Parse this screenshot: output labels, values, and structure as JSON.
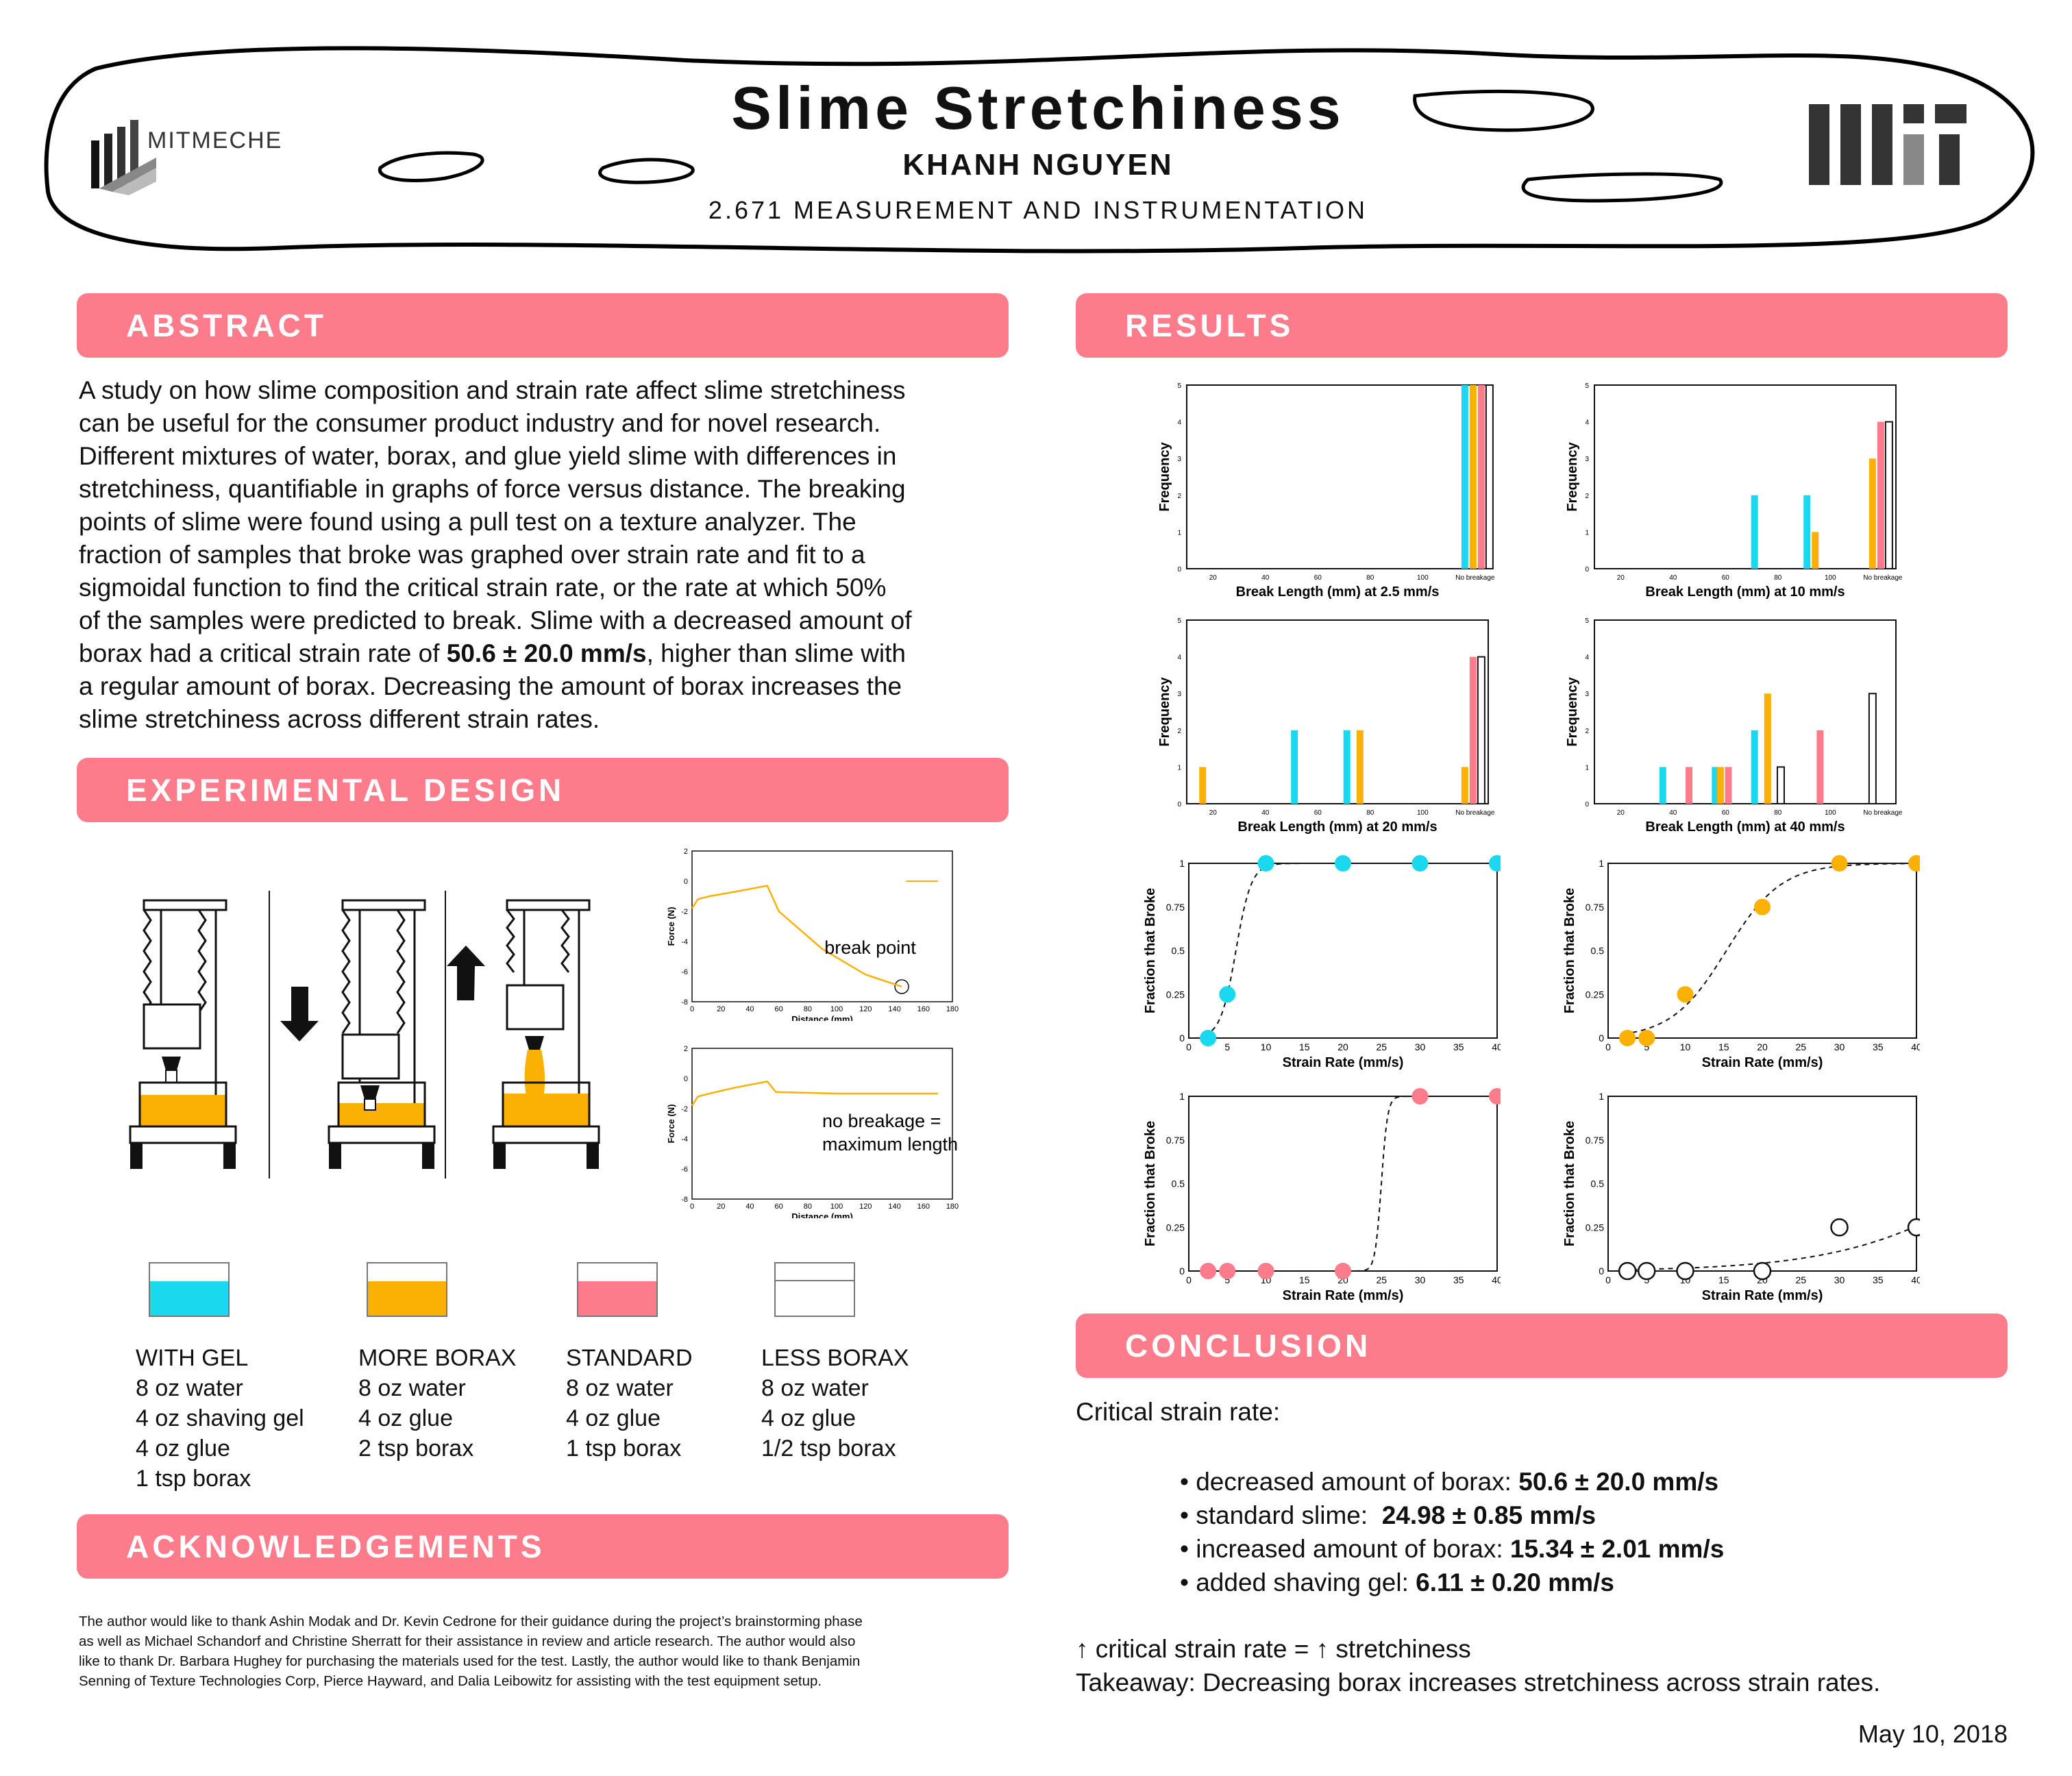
{
  "header": {
    "title": "Slime Stretchiness",
    "author": "KHANH NGUYEN",
    "course": "2.671 MEASUREMENT AND INSTRUMENTATION",
    "logo_left_text": "MITMECHE",
    "logo_right": "MIT"
  },
  "sections": {
    "abstract": "ABSTRACT",
    "experimental": "EXPERIMENTAL DESIGN",
    "acknowledgements": "ACKNOWLEDGEMENTS",
    "results": "RESULTS",
    "conclusion": "CONCLUSION"
  },
  "abstract_lines": [
    "A study on how slime composition and strain rate affect slime stretchiness",
    "can be useful for the consumer product industry and for novel research.",
    "Different mixtures of water, borax, and glue yield slime with differences in",
    "stretchiness, quantifiable in graphs of force versus distance. The breaking",
    "points of slime were found using a pull test on a texture analyzer. The",
    "fraction of samples that broke was graphed over strain rate and fit to a",
    "sigmoidal function to find the critical strain rate, or the rate at which 50%",
    "of the samples were predicted to break. Slime with a decreased amount of"
  ],
  "abstract_l9": {
    "pre": "borax had a critical strain rate of ",
    "bold": "50.6  ± 20.0 mm/s",
    "post": ", higher than slime with"
  },
  "abstract_tail": [
    "a regular amount of borax. Decreasing the amount of borax increases the",
    "slime stretchiness across different strain rates."
  ],
  "colors": {
    "gel": "#1ad8ee",
    "more_borax": "#fbb103",
    "standard": "#fd7c8c",
    "less_borax": "#ffffff",
    "banner": "#fd7c8c"
  },
  "mixtures": [
    {
      "name": "WITH GEL",
      "lines": [
        "8 oz water",
        "4 oz shaving gel",
        "4 oz glue",
        "1 tsp borax"
      ]
    },
    {
      "name": "MORE BORAX",
      "lines": [
        "8 oz water",
        "4 oz glue",
        "2 tsp borax"
      ]
    },
    {
      "name": "STANDARD",
      "lines": [
        "8 oz water",
        "4 oz glue",
        "1 tsp borax"
      ]
    },
    {
      "name": "LESS BORAX",
      "lines": [
        "8 oz water",
        "4 oz glue",
        "1/2 tsp borax"
      ]
    }
  ],
  "force_plots": [
    {
      "ylabel": "Force (N)",
      "xlabel": "Distance (mm)",
      "annotation": [
        "break point"
      ],
      "yticks": [
        "2",
        "0",
        "-2",
        "-4",
        "-6",
        "-8"
      ],
      "xticks": [
        "0",
        "20",
        "40",
        "60",
        "80",
        "100",
        "120",
        "140",
        "160",
        "180"
      ]
    },
    {
      "ylabel": "Force (N)",
      "xlabel": "Distance (mm)",
      "annotation": [
        "no breakage =",
        "maximum length"
      ],
      "yticks": [
        "2",
        "0",
        "-2",
        "-4",
        "-6",
        "-8"
      ],
      "xticks": [
        "0",
        "20",
        "40",
        "60",
        "80",
        "100",
        "120",
        "140",
        "160",
        "180"
      ]
    }
  ],
  "chart_data": [
    {
      "type": "bar",
      "title": "",
      "xlabel": "Break Length (mm) at 2.5 mm/s",
      "ylabel": "Frequency",
      "ylim": [
        0,
        5
      ],
      "xticks": [
        "20",
        "40",
        "60",
        "80",
        "100",
        "No breakage"
      ],
      "series": [
        {
          "color": "#1ad8ee",
          "bars": [
            [
              120,
              5
            ]
          ]
        },
        {
          "color": "#fbb103",
          "bars": [
            [
              120,
              5
            ]
          ]
        },
        {
          "color": "#fd7c8c",
          "bars": [
            [
              120,
              5
            ]
          ]
        },
        {
          "color": "#ffffff",
          "bars": [
            [
              120,
              5
            ]
          ]
        }
      ]
    },
    {
      "type": "bar",
      "title": "",
      "xlabel": "Break Length (mm) at 10 mm/s",
      "ylabel": "Frequency",
      "ylim": [
        0,
        5
      ],
      "xticks": [
        "20",
        "40",
        "60",
        "80",
        "100",
        "No breakage"
      ],
      "series": [
        {
          "color": "#1ad8ee",
          "bars": [
            [
              75,
              2
            ],
            [
              95,
              2
            ]
          ]
        },
        {
          "color": "#fbb103",
          "bars": [
            [
              95,
              1
            ],
            [
              120,
              3
            ]
          ]
        },
        {
          "color": "#fd7c8c",
          "bars": [
            [
              120,
              4
            ]
          ]
        },
        {
          "color": "#ffffff",
          "bars": [
            [
              120,
              4
            ]
          ]
        }
      ]
    },
    {
      "type": "bar",
      "title": "",
      "xlabel": "Break Length (mm) at 20 mm/s",
      "ylabel": "Frequency",
      "ylim": [
        0,
        5
      ],
      "xticks": [
        "20",
        "40",
        "60",
        "80",
        "100",
        "No breakage"
      ],
      "series": [
        {
          "color": "#fbb103",
          "bars": [
            [
              20,
              1
            ],
            [
              80,
              2
            ],
            [
              120,
              1
            ]
          ]
        },
        {
          "color": "#1ad8ee",
          "bars": [
            [
              55,
              2
            ],
            [
              75,
              2
            ]
          ]
        },
        {
          "color": "#fd7c8c",
          "bars": [
            [
              120,
              4
            ]
          ]
        },
        {
          "color": "#ffffff",
          "bars": [
            [
              120,
              4
            ]
          ]
        }
      ]
    },
    {
      "type": "bar",
      "title": "",
      "xlabel": "Break Length (mm) at 40 mm/s",
      "ylabel": "Frequency",
      "ylim": [
        0,
        5
      ],
      "xticks": [
        "20",
        "40",
        "60",
        "80",
        "100",
        "No breakage"
      ],
      "series": [
        {
          "color": "#1ad8ee",
          "bars": [
            [
              40,
              1
            ],
            [
              60,
              1
            ],
            [
              75,
              2
            ]
          ]
        },
        {
          "color": "#fd7c8c",
          "bars": [
            [
              50,
              1
            ],
            [
              65,
              1
            ],
            [
              100,
              2
            ]
          ]
        },
        {
          "color": "#fbb103",
          "bars": [
            [
              62,
              1
            ],
            [
              80,
              3
            ]
          ]
        },
        {
          "color": "#ffffff",
          "bars": [
            [
              85,
              1
            ],
            [
              120,
              3
            ]
          ]
        }
      ]
    },
    {
      "type": "scatter",
      "title": "",
      "xlabel": "Strain Rate (mm/s)",
      "ylabel": "Fraction that Broke",
      "xlim": [
        0,
        40
      ],
      "ylim": [
        0,
        1
      ],
      "xticks": [
        "0",
        "5",
        "10",
        "15",
        "20",
        "25",
        "30",
        "35",
        "40"
      ],
      "yticks": [
        "0",
        "0.25",
        "0.5",
        "0.75",
        "1"
      ],
      "color": "#1ad8ee",
      "critical": 6.11,
      "steep": 1.0,
      "points": [
        [
          2.5,
          0
        ],
        [
          5,
          0.25
        ],
        [
          10,
          1
        ],
        [
          20,
          1
        ],
        [
          30,
          1
        ],
        [
          40,
          1
        ]
      ]
    },
    {
      "type": "scatter",
      "title": "",
      "xlabel": "Strain Rate (mm/s)",
      "ylabel": "Fraction that Broke",
      "xlim": [
        0,
        40
      ],
      "ylim": [
        0,
        1
      ],
      "xticks": [
        "0",
        "5",
        "10",
        "15",
        "20",
        "25",
        "30",
        "35",
        "40"
      ],
      "yticks": [
        "0",
        "0.25",
        "0.5",
        "0.75",
        "1"
      ],
      "color": "#fbb103",
      "critical": 15.34,
      "steep": 0.28,
      "points": [
        [
          2.5,
          0
        ],
        [
          5,
          0
        ],
        [
          10,
          0.25
        ],
        [
          20,
          0.75
        ],
        [
          30,
          1
        ],
        [
          40,
          1
        ]
      ]
    },
    {
      "type": "scatter",
      "title": "",
      "xlabel": "Strain Rate (mm/s)",
      "ylabel": "Fraction that Broke",
      "xlim": [
        0,
        40
      ],
      "ylim": [
        0,
        1
      ],
      "xticks": [
        "0",
        "5",
        "10",
        "15",
        "20",
        "25",
        "30",
        "35",
        "40"
      ],
      "yticks": [
        "0",
        "0.25",
        "0.5",
        "0.75",
        "1"
      ],
      "color": "#fd7c8c",
      "critical": 24.98,
      "steep": 2.5,
      "points": [
        [
          2.5,
          0
        ],
        [
          5,
          0
        ],
        [
          10,
          0
        ],
        [
          20,
          0
        ],
        [
          30,
          1
        ],
        [
          40,
          1
        ]
      ]
    },
    {
      "type": "scatter",
      "title": "",
      "xlabel": "Strain Rate (mm/s)",
      "ylabel": "Fraction that Broke",
      "xlim": [
        0,
        40
      ],
      "ylim": [
        0,
        1
      ],
      "xticks": [
        "0",
        "5",
        "10",
        "15",
        "20",
        "25",
        "30",
        "35",
        "40"
      ],
      "yticks": [
        "0",
        "0.25",
        "0.5",
        "0.75",
        "1"
      ],
      "color": "#ffffff",
      "critical": 50.6,
      "steep": 0.1,
      "points": [
        [
          2.5,
          0
        ],
        [
          5,
          0
        ],
        [
          10,
          0
        ],
        [
          20,
          0
        ],
        [
          30,
          0.25
        ],
        [
          40,
          0.25
        ]
      ]
    }
  ],
  "acknowledgements_lines": [
    "The author would like to thank Ashin Modak and Dr. Kevin Cedrone for their guidance during the project’s brainstorming phase",
    "as well as Michael Schandorf and Christine Sherratt for their assistance in review and article research. The author would also",
    "like to thank Dr. Barbara Hughey for purchasing the materials used for the test. Lastly, the author would like to thank Benjamin",
    "Senning of Texture Technologies Corp, Pierce Hayward, and Dalia Leibowitz for assisting with the test equipment setup."
  ],
  "conclusion": {
    "intro": "Critical strain rate:",
    "items": [
      {
        "label": "• decreased amount of borax: ",
        "value": "50.6 ± 20.0 mm/s"
      },
      {
        "label": "• standard slime:  ",
        "value": "24.98 ± 0.85 mm/s"
      },
      {
        "label": "• increased amount of borax: ",
        "value": "15.34 ± 2.01 mm/s"
      },
      {
        "label": "• added shaving gel: ",
        "value": "6.11 ± 0.20 mm/s"
      }
    ],
    "arrow_line": "↑ critical strain rate = ↑ stretchiness",
    "takeaway": "Takeaway: Decreasing borax increases stretchiness across strain rates."
  },
  "date": "May 10, 2018"
}
